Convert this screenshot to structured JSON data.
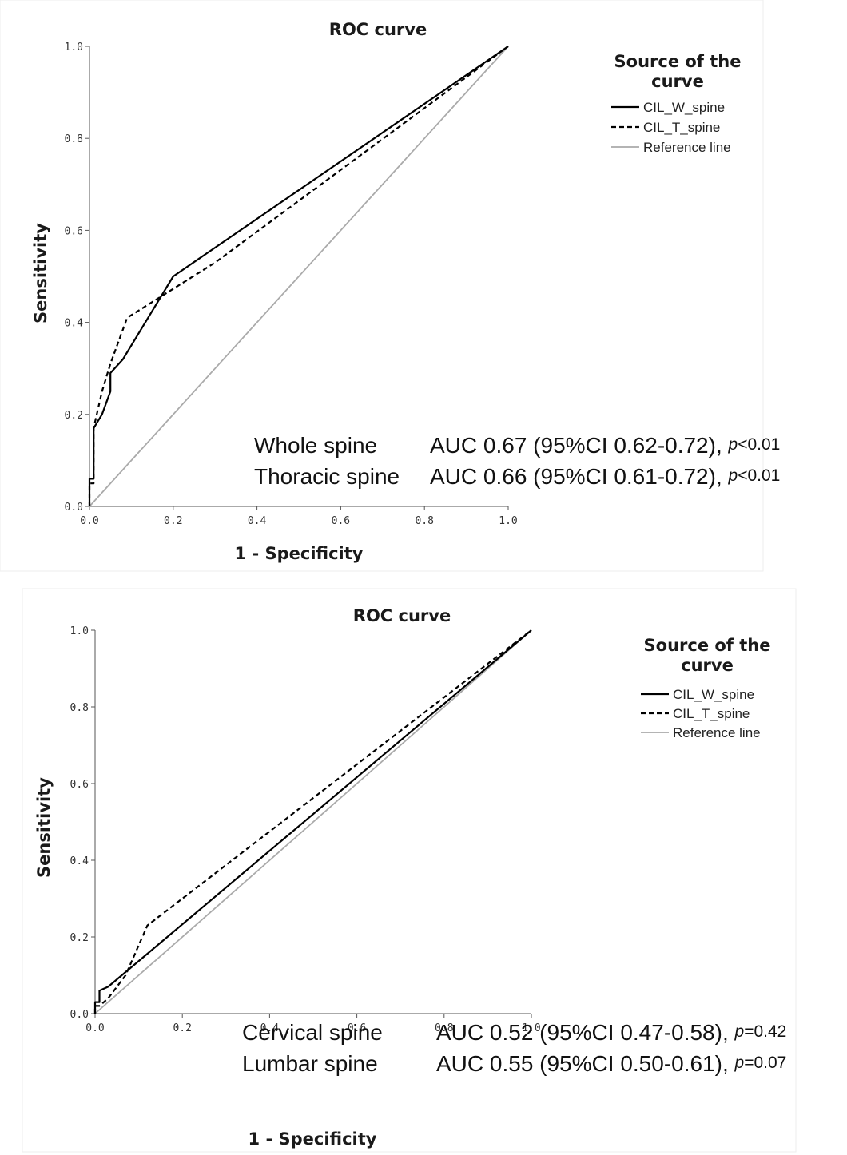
{
  "chart_data": [
    {
      "type": "line",
      "title": "ROC curve",
      "xlabel": "1 - Specificity",
      "ylabel": "Sensitivity",
      "xlim": [
        0,
        1
      ],
      "ylim": [
        0,
        1
      ],
      "xticks": [
        "0.0",
        "0.2",
        "0.4",
        "0.6",
        "0.8",
        "1.0"
      ],
      "yticks": [
        "0.0",
        "0.2",
        "0.4",
        "0.6",
        "0.8",
        "1.0"
      ],
      "grid": false,
      "legend_title": "Source of the curve",
      "legend_title_lines": [
        "Source of the",
        "curve"
      ],
      "legend_position": "top-right",
      "series": [
        {
          "name": "CIL_W_spine",
          "style": "solid",
          "color": "#000000",
          "points": [
            [
              0,
              0
            ],
            [
              0,
              0.06
            ],
            [
              0.01,
              0.06
            ],
            [
              0.01,
              0.17
            ],
            [
              0.03,
              0.2
            ],
            [
              0.05,
              0.25
            ],
            [
              0.05,
              0.29
            ],
            [
              0.08,
              0.32
            ],
            [
              0.2,
              0.5
            ],
            [
              1,
              1
            ]
          ]
        },
        {
          "name": "CIL_T_spine",
          "style": "dashed",
          "color": "#000000",
          "points": [
            [
              0,
              0
            ],
            [
              0,
              0.05
            ],
            [
              0.01,
              0.05
            ],
            [
              0.01,
              0.17
            ],
            [
              0.03,
              0.25
            ],
            [
              0.05,
              0.31
            ],
            [
              0.09,
              0.41
            ],
            [
              0.3,
              0.53
            ],
            [
              1,
              1
            ]
          ]
        },
        {
          "name": "Reference line",
          "style": "solid",
          "color": "#aaaaaa",
          "points": [
            [
              0,
              0
            ],
            [
              1,
              1
            ]
          ]
        }
      ],
      "annotations": [
        {
          "label": "Whole spine",
          "stat": "AUC 0.67 (95%CI 0.62-0.72), ",
          "p_symbol": "p",
          "p_value": "<0.01"
        },
        {
          "label": "Thoracic spine",
          "stat": "AUC 0.66 (95%CI 0.61-0.72), ",
          "p_symbol": "p",
          "p_value": "<0.01"
        }
      ]
    },
    {
      "type": "line",
      "title": "ROC curve",
      "xlabel": "1 - Specificity",
      "ylabel": "Sensitivity",
      "xlim": [
        0,
        1
      ],
      "ylim": [
        0,
        1
      ],
      "xticks": [
        "0.0",
        "0.2",
        "0.4",
        "0.6",
        "0.8",
        "1.0"
      ],
      "yticks": [
        "0.0",
        "0.2",
        "0.4",
        "0.6",
        "0.8",
        "1.0"
      ],
      "grid": false,
      "legend_title": "Source of the curve",
      "legend_title_lines": [
        "Source of the",
        "curve"
      ],
      "legend_position": "top-right",
      "series": [
        {
          "name": "CIL_W_spine",
          "style": "solid",
          "color": "#000000",
          "points": [
            [
              0,
              0
            ],
            [
              0,
              0.03
            ],
            [
              0.01,
              0.03
            ],
            [
              0.01,
              0.06
            ],
            [
              0.03,
              0.07
            ],
            [
              1,
              1
            ]
          ]
        },
        {
          "name": "CIL_T_spine",
          "style": "dashed",
          "color": "#000000",
          "points": [
            [
              0,
              0
            ],
            [
              0,
              0.02
            ],
            [
              0.01,
              0.02
            ],
            [
              0.03,
              0.04
            ],
            [
              0.07,
              0.1
            ],
            [
              0.12,
              0.23
            ],
            [
              1,
              1
            ]
          ]
        },
        {
          "name": "Reference line",
          "style": "solid",
          "color": "#aaaaaa",
          "points": [
            [
              0,
              0
            ],
            [
              1,
              1
            ]
          ]
        }
      ],
      "annotations": [
        {
          "label": "Cervical spine",
          "stat": "AUC 0.52 (95%CI 0.47-0.58), ",
          "p_symbol": "p",
          "p_value": "=0.42"
        },
        {
          "label": "Lumbar spine",
          "stat": "AUC 0.55 (95%CI 0.50-0.61), ",
          "p_symbol": "p",
          "p_value": "=0.07"
        }
      ]
    }
  ]
}
